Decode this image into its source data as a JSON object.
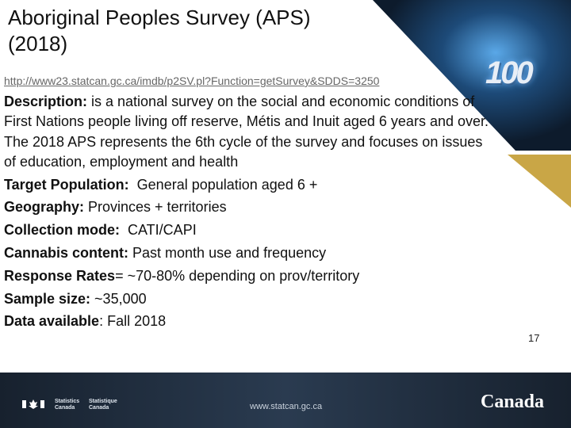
{
  "title": "Aboriginal Peoples Survey (APS) (2018)",
  "url": "http://www23.statcan.gc.ca/imdb/p2SV.pl?Function=getSurvey&SDDS=3250",
  "fields": [
    {
      "label": "Description:",
      "text": " is a national survey on the social and economic conditions of First Nations people living off reserve, Métis and Inuit aged 6 years and over. The 2018 APS represents the 6th cycle of the survey and focuses on issues of education, employment and health"
    },
    {
      "label": "Target Population:",
      "text": "  General population aged 6 +"
    },
    {
      "label": "Geography:",
      "text": " Provinces + territories"
    },
    {
      "label": "Collection mode:",
      "text": "  CATI/CAPI"
    },
    {
      "label": "Cannabis content:",
      "text": " Past month use and frequency"
    },
    {
      "label": "Response Rates",
      "text": "= ~70-80% depending on prov/territory"
    },
    {
      "label": "Sample size:",
      "text": " ~35,000"
    },
    {
      "label": "Data available",
      "text": ": Fall 2018"
    }
  ],
  "badge": "100",
  "page_number": "17",
  "footer": {
    "agency_en": "Statistics Canada",
    "agency_fr": "Statistique Canada",
    "website": "www.statcan.gc.ca",
    "wordmark": "Canada"
  }
}
